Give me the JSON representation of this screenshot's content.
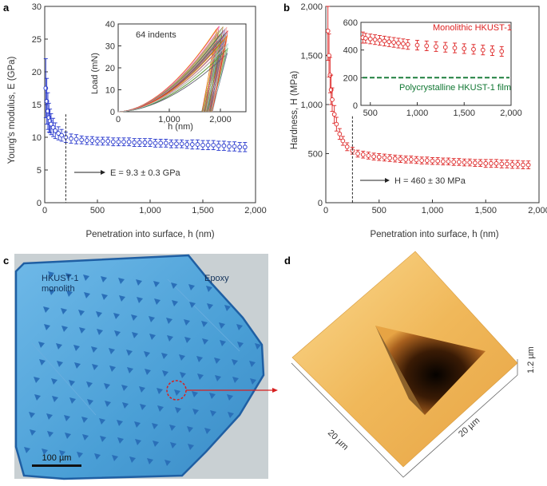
{
  "panels": {
    "a": {
      "letter": "a",
      "xlabel": "Penetration into surface, h (nm)",
      "ylabel": "Young's modulus, E (GPa)",
      "annotation": "E = 9.3 ± 0.3 GPa",
      "x_ticks": [
        "0",
        "500",
        "1,000",
        "1,500",
        "2,000"
      ],
      "y_ticks": [
        "0",
        "5",
        "10",
        "15",
        "20",
        "25",
        "30"
      ],
      "inset": {
        "label": "64 indents",
        "xlabel": "h (nm)",
        "ylabel": "Load (mN)",
        "x_ticks": [
          "0",
          "1,000",
          "2,000"
        ],
        "y_ticks": [
          "0",
          "10",
          "20",
          "30",
          "40"
        ]
      }
    },
    "b": {
      "letter": "b",
      "xlabel": "Penetration into surface, h (nm)",
      "ylabel": "Hardness, H (MPa)",
      "annotation": "H = 460 ± 30 MPa",
      "x_ticks": [
        "0",
        "500",
        "1,000",
        "1,500",
        "2,000"
      ],
      "y_ticks": [
        "0",
        "500",
        "1,000",
        "1,500",
        "2,000"
      ],
      "inset": {
        "legend_mono": "Monolithic HKUST-1",
        "legend_poly": "Polycrystalline HKUST-1 film",
        "x_ticks": [
          "500",
          "1,000",
          "1,500",
          "2,000"
        ],
        "y_ticks": [
          "0",
          "200",
          "400",
          "600"
        ]
      }
    },
    "c": {
      "letter": "c",
      "label_monolith": "HKUST-1\nmonolith",
      "label_monolith_l1": "HKUST-1",
      "label_monolith_l2": "monolith",
      "label_epoxy": "Epoxy",
      "scalebar": "100 µm"
    },
    "d": {
      "letter": "d",
      "axis_x": "20 µm",
      "axis_y": "20 µm",
      "axis_z": "1.2 µm"
    }
  },
  "chart_data": [
    {
      "type": "scatter",
      "title": "",
      "xlabel": "Penetration into surface, h (nm)",
      "ylabel": "Young's modulus, E (GPa)",
      "xlim": [
        0,
        2000
      ],
      "ylim": [
        0,
        30
      ],
      "series": [
        {
          "x": [
            10,
            20,
            30,
            40,
            50,
            60,
            80,
            100,
            130,
            160,
            200,
            250,
            300,
            350,
            400,
            450,
            500,
            550,
            600,
            650,
            700,
            750,
            800,
            850,
            900,
            950,
            1000,
            1050,
            1100,
            1150,
            1200,
            1250,
            1300,
            1350,
            1400,
            1450,
            1500,
            1550,
            1600,
            1650,
            1700,
            1750,
            1800,
            1850,
            1900
          ],
          "y": [
            17.5,
            15.5,
            14.0,
            13.0,
            12.5,
            12.0,
            11.5,
            11.0,
            10.6,
            10.3,
            10.0,
            9.8,
            9.7,
            9.6,
            9.5,
            9.5,
            9.4,
            9.4,
            9.4,
            9.3,
            9.3,
            9.3,
            9.3,
            9.2,
            9.2,
            9.2,
            9.2,
            9.1,
            9.1,
            9.1,
            9.0,
            9.0,
            9.0,
            8.9,
            8.9,
            8.9,
            8.8,
            8.8,
            8.8,
            8.7,
            8.7,
            8.6,
            8.6,
            8.5,
            8.5
          ],
          "err": [
            4.5,
            3.5,
            2.8,
            2.2,
            1.8,
            1.6,
            1.4,
            1.2,
            1.0,
            0.9,
            0.8,
            0.7,
            0.7,
            0.6,
            0.6,
            0.6,
            0.6,
            0.6,
            0.6,
            0.6,
            0.6,
            0.6,
            0.6,
            0.6,
            0.6,
            0.6,
            0.6,
            0.6,
            0.6,
            0.6,
            0.6,
            0.6,
            0.6,
            0.6,
            0.7,
            0.7,
            0.7,
            0.7,
            0.7,
            0.7,
            0.7,
            0.7,
            0.7,
            0.7,
            0.7
          ],
          "color": "#2233cc"
        }
      ],
      "vline_x": 200,
      "annotation": "E = 9.3 ± 0.3 GPa",
      "inset": {
        "type": "line",
        "label": "64 indents",
        "xlabel": "h (nm)",
        "ylabel": "Load (mN)",
        "xlim": [
          0,
          2500
        ],
        "ylim": [
          0,
          40
        ],
        "curves_count": 64,
        "curve_max_h_range": [
          1900,
          2150
        ],
        "curve_max_load_range": [
          25,
          39
        ]
      }
    },
    {
      "type": "scatter",
      "title": "",
      "xlabel": "Penetration into surface, h (nm)",
      "ylabel": "Hardness, H (MPa)",
      "xlim": [
        0,
        2000
      ],
      "ylim": [
        0,
        2000
      ],
      "series": [
        {
          "name": "Monolithic HKUST-1",
          "x": [
            20,
            30,
            40,
            50,
            60,
            80,
            100,
            130,
            160,
            200,
            250,
            300,
            350,
            400,
            450,
            500,
            550,
            600,
            650,
            700,
            750,
            800,
            850,
            900,
            950,
            1000,
            1050,
            1100,
            1150,
            1200,
            1250,
            1300,
            1350,
            1400,
            1450,
            1500,
            1550,
            1600,
            1650,
            1700,
            1750,
            1800,
            1850,
            1900
          ],
          "y": [
            1750,
            1500,
            1300,
            1150,
            1050,
            900,
            800,
            700,
            630,
            570,
            530,
            500,
            490,
            480,
            470,
            465,
            460,
            455,
            450,
            445,
            440,
            440,
            435,
            430,
            430,
            425,
            425,
            420,
            420,
            415,
            415,
            410,
            410,
            405,
            405,
            400,
            400,
            400,
            395,
            395,
            390,
            390,
            385,
            385
          ],
          "err": [
            300,
            220,
            180,
            150,
            120,
            90,
            70,
            55,
            45,
            40,
            35,
            35,
            35,
            35,
            35,
            35,
            35,
            35,
            35,
            35,
            35,
            35,
            35,
            35,
            35,
            35,
            35,
            35,
            35,
            35,
            35,
            35,
            35,
            35,
            35,
            40,
            40,
            40,
            40,
            40,
            40,
            40,
            40,
            40
          ],
          "color": "#dd2222"
        }
      ],
      "vline_x": 250,
      "annotation": "H = 460 ± 30 MPa",
      "inset": {
        "type": "scatter",
        "xlim": [
          400,
          2000
        ],
        "ylim": [
          0,
          600
        ],
        "series": [
          {
            "name": "Monolithic HKUST-1",
            "x": [
              420,
              450,
              500,
              550,
              600,
              650,
              700,
              750,
              800,
              850,
              900,
              1000,
              1100,
              1200,
              1300,
              1400,
              1500,
              1600,
              1700,
              1800,
              1900
            ],
            "y": [
              490,
              485,
              480,
              475,
              470,
              465,
              460,
              455,
              450,
              445,
              440,
              435,
              430,
              425,
              420,
              415,
              410,
              405,
              400,
              395,
              390
            ],
            "err": [
              40,
              35,
              35,
              35,
              35,
              35,
              35,
              35,
              35,
              35,
              35,
              35,
              35,
              35,
              35,
              35,
              35,
              35,
              35,
              35,
              35
            ],
            "color": "#dd2222"
          },
          {
            "name": "Polycrystalline HKUST-1 film",
            "y_const": 200,
            "style": "dashed",
            "color": "#117733"
          }
        ]
      }
    }
  ],
  "colors": {
    "modulus": "#2233cc",
    "hardness": "#dd2222",
    "film": "#117733",
    "micrograph_bg": "#4a9fd6",
    "indent": "#2a6fb8",
    "afm_surface": "#f0b85a"
  }
}
